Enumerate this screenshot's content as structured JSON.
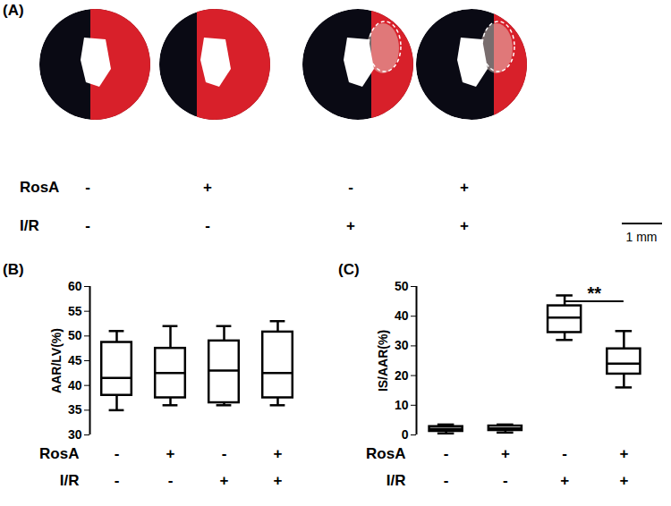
{
  "panel_a": {
    "label": "(A)",
    "scale_bar": "1 mm",
    "rows": [
      {
        "name": "RosA",
        "values": [
          "-",
          "+",
          "-",
          "+"
        ]
      },
      {
        "name": "I/R",
        "values": [
          "-",
          "-",
          "+",
          "+"
        ]
      }
    ]
  },
  "chart_data": [
    {
      "type": "box",
      "panel": "(B)",
      "y_label": "AAR/LV(%)",
      "categories": [
        null,
        null,
        null,
        null
      ],
      "conditions": [
        {
          "name": "RosA",
          "values": [
            "-",
            "+",
            "-",
            "+"
          ]
        },
        {
          "name": "I/R",
          "values": [
            "-",
            "-",
            "+",
            "+"
          ]
        }
      ],
      "min": [
        35,
        36,
        36,
        36
      ],
      "q1": [
        38,
        37.5,
        36.5,
        37.5
      ],
      "median": [
        41.5,
        42.5,
        43,
        42.5
      ],
      "q3": [
        48.7,
        47.5,
        49,
        50.8
      ],
      "max": [
        51,
        52,
        52,
        53
      ],
      "ylim": [
        30,
        60
      ],
      "yticks": [
        30,
        35,
        40,
        45,
        50,
        55,
        60
      ],
      "tick_labels": "y",
      "color": "#000000"
    },
    {
      "type": "box",
      "panel": "(C)",
      "y_label": "IS/AAR(%)",
      "categories": [
        null,
        null,
        null,
        null
      ],
      "conditions": [
        {
          "name": "RosA",
          "values": [
            "-",
            "+",
            "-",
            "+"
          ]
        },
        {
          "name": "I/R",
          "values": [
            "-",
            "-",
            "+",
            "+"
          ]
        }
      ],
      "min": [
        0.5,
        0.8,
        32,
        16
      ],
      "q1": [
        1.2,
        1.5,
        34.5,
        20.5
      ],
      "median": [
        2,
        2.2,
        39.5,
        24
      ],
      "q3": [
        2.8,
        3,
        43.5,
        29
      ],
      "max": [
        3.5,
        3.5,
        47,
        35
      ],
      "ylim": [
        0,
        50
      ],
      "yticks": [
        0,
        10,
        20,
        30,
        40,
        50
      ],
      "tick_labels": "y",
      "color": "#000000",
      "annotations": [
        {
          "text": "**",
          "from": 2,
          "to": 3,
          "y": 45
        }
      ]
    }
  ]
}
